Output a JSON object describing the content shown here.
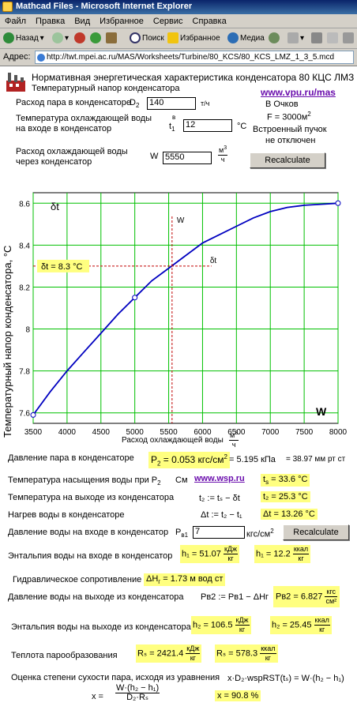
{
  "window": {
    "title": "Mathcad Files - Microsoft Internet Explorer"
  },
  "menu": [
    "Файл",
    "Правка",
    "Вид",
    "Избранное",
    "Сервис",
    "Справка"
  ],
  "toolbar": {
    "back": "Назад",
    "search": "Поиск",
    "favorites": "Избранное",
    "media": "Медиа"
  },
  "address": {
    "label": "Адрес:",
    "url": "http://twt.mpei.ac.ru/MAS/Worksheets/Turbine/80_KCS/80_KCS_LMZ_1_3_5.mcd"
  },
  "header": {
    "title": "Нормативная энергетическая характеристика конденсатора 80 КЦС ЛМЗ",
    "subtitle": "Температурный напор конденсатора",
    "link": "www.vpu.ru/mas",
    "author": "В Очков",
    "area": "F = 3000м",
    "area_sup": "2",
    "note1": "Встроенный пучок",
    "note2": "не отключен"
  },
  "inputs": {
    "steam_label": "Расход пара в конденсаторе",
    "steam_sym": "D",
    "steam_sub": "2",
    "steam_value": "140",
    "steam_unit": "т/ч",
    "tin_label1": "Температура охлаждающей воды",
    "tin_label2": "на входе в конденсатор",
    "tin_sym": "t",
    "tin_sub": "1",
    "tin_sup": "в",
    "tin_value": "12",
    "tin_unit": "°С",
    "w_label1": "Расход охлаждающей воды",
    "w_label2": "через конденсатор",
    "w_sym": "W",
    "w_value": "5550",
    "w_unit_n": "м",
    "w_unit_sup": "3",
    "w_unit_d": "ч",
    "recalc": "Recalculate"
  },
  "chart_data": {
    "type": "line",
    "ylabel": "Температурный напор конденсатора, °С",
    "xlabel": "Расход охлаждающей воды",
    "xunit_n": "м",
    "xunit_sup": "3",
    "xunit_d": "ч",
    "y_name": "δt",
    "x_name": "W",
    "xlim": [
      3500,
      8000
    ],
    "ylim": [
      7.55,
      8.65
    ],
    "xticks": [
      3500,
      4000,
      4500,
      5000,
      5500,
      6000,
      6500,
      7000,
      7500,
      8000
    ],
    "yticks": [
      7.6,
      7.8,
      8,
      8.2,
      8.4,
      8.6
    ],
    "series": [
      {
        "x": [
          3500,
          3750,
          4000,
          4250,
          4500,
          4750,
          5000,
          5250,
          5500,
          5750,
          6000,
          6250,
          6500,
          6750,
          7000,
          7250,
          7500,
          7750,
          8000
        ],
        "y": [
          7.59,
          7.7,
          7.8,
          7.89,
          7.98,
          8.07,
          8.15,
          8.23,
          8.29,
          8.35,
          8.41,
          8.45,
          8.49,
          8.53,
          8.56,
          8.58,
          8.59,
          8.595,
          8.6
        ]
      }
    ],
    "markers": [
      {
        "x": 3500,
        "y": 7.59
      },
      {
        "x": 5000,
        "y": 8.15
      },
      {
        "x": 8000,
        "y": 8.6
      }
    ],
    "crosshair": {
      "x": 5550,
      "y": 8.3
    },
    "crosshair_label": "δt = 8.3 °С",
    "crosshair_x_label": "W",
    "crosshair_y_label": "δt"
  },
  "results": {
    "p_label": "Давление пара в конденсаторе",
    "p_hl": "P",
    "p_sub": "2",
    "p_val": " = 0.053 кгс/см",
    "p_sup": "2",
    "p_kpa": "= 5.195 кПа",
    "p_mm": "= 38.97 мм рт ст",
    "ts_label": "Температура насыщения воды при P",
    "ts_sub": "2",
    "ts_see": "См",
    "ts_link": "www.wsp.ru",
    "ts_val": "t",
    "ts_val_sub": "s",
    "ts_val2": " = 33.6 °С",
    "t2_label": "Температура на выходе из конденсатора",
    "t2_formula": "t₂ := tₛ − δt",
    "t2_val": "t₂ = 25.3 °С",
    "dt_label": "Нагрев воды в конденсаторе",
    "dt_formula": "Δt := t₂ − t₁",
    "dt_val": "Δt = 13.26 °С",
    "pin_label": "Давление воды на входе в конденсатор",
    "pin_sym": "P",
    "pin_sub": "в1",
    "pin_value": "7",
    "pin_unit": "кгс/см",
    "pin_sup": "2",
    "recalc2": "Recalculate",
    "h1_label": "Энтальпия воды на входе в конденсатор",
    "h1_a": "h₁ = 51.07",
    "h1_a_n": "кДж",
    "h1_a_d": "кг",
    "h1_b": "h₁ = 12.2",
    "h1_b_n": "ккал",
    "h1_b_d": "кг",
    "dh_label": "Гидравлическое сопротивление",
    "dh_val": "ΔH",
    "dh_sub": "г",
    "dh_val2": " = 1.73 м вод ст",
    "pout_label": "Давление воды на выходе из конденсатора",
    "pout_formula": "Pв2 := Pв1 − ΔHг",
    "pout_val": "Pв2 = 6.827",
    "pout_n": "кгс",
    "pout_d": "см²",
    "h2_label": "Энтальпия воды на выходе из конденсатора",
    "h2_a": "h₂ = 106.5",
    "h2_a_n": "кДж",
    "h2_a_d": "кг",
    "h2_b": "h₂ = 25.45",
    "h2_b_n": "ккал",
    "h2_b_d": "кг",
    "rs_label": "Теплота парообразования",
    "rs_a": "Rₛ = 2421.4",
    "rs_a_n": "кДж",
    "rs_a_d": "кг",
    "rs_b": "Rₛ = 578.3",
    "rs_b_n": "ккал",
    "rs_b_d": "кг",
    "x_label": "Оценка степени сухости пара, исходя из уравнения",
    "x_eq": "x·D₂·wspRST(tₛ) = W·(h₂ − h₁)",
    "x_def": "x =",
    "x_num": "W·(h₂ − h₁)",
    "x_den": "D₂·Rₛ",
    "x_val": "x = 90.8 %"
  }
}
